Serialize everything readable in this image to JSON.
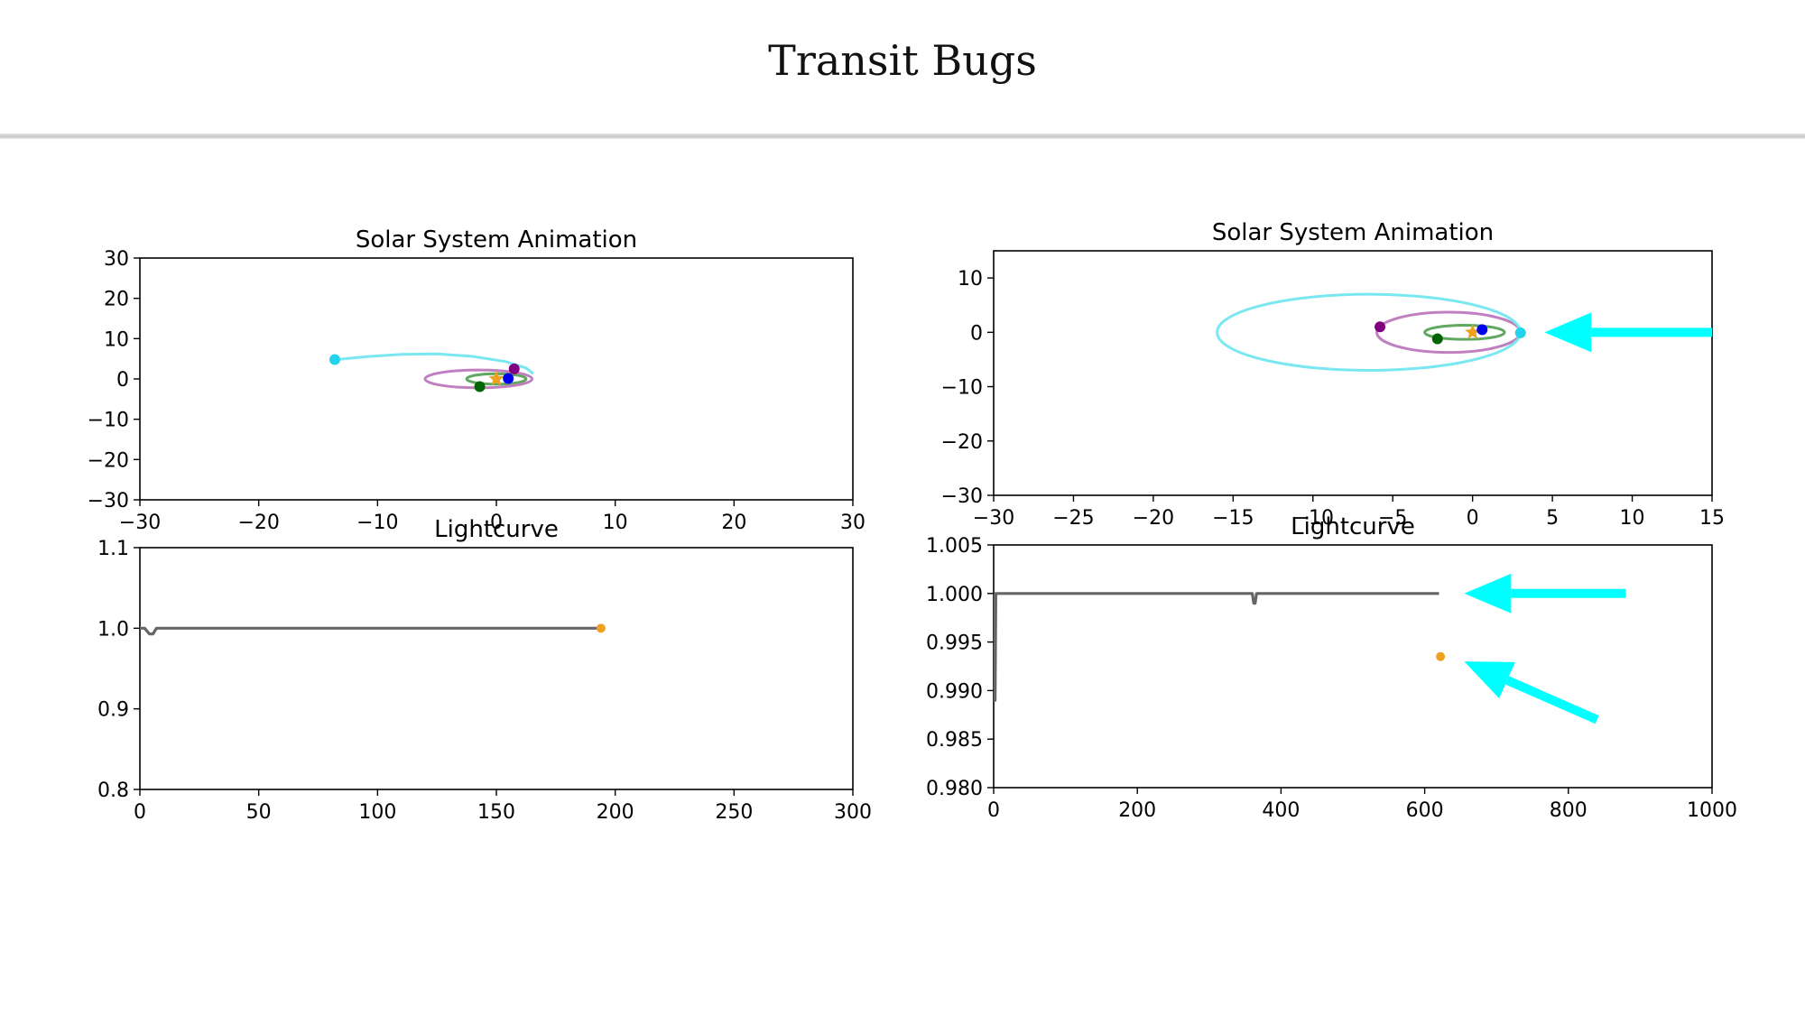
{
  "slide": {
    "title": "Transit Bugs"
  },
  "colors": {
    "star": "#f0a020",
    "planet_blue": "#0000ee",
    "planet_green": "#006400",
    "planet_purple": "#800080",
    "planet_cyan": "#22d3ee",
    "orbit_green": "#60a860",
    "orbit_purple": "#c080c0",
    "orbit_cyan": "#7ae8f0",
    "lightcurve": "#666666",
    "arrow": "#00ffff",
    "marker": "#f0a020"
  },
  "chart_data": [
    {
      "type": "scatter",
      "title": "Solar System Animation",
      "xlabel": "",
      "ylabel": "",
      "xlim": [
        -30,
        30
      ],
      "ylim": [
        -30,
        30
      ],
      "xticks": [
        -30,
        -20,
        -10,
        0,
        10,
        20,
        30
      ],
      "yticks": [
        -30,
        -20,
        -10,
        0,
        10,
        20,
        30
      ],
      "grid": false,
      "orbits": [
        {
          "color": "orbit_green",
          "cx": 0,
          "cy": 0,
          "rx": 2.5,
          "ry": 1.3
        },
        {
          "color": "orbit_purple",
          "cx": -1.5,
          "cy": 0,
          "rx": 4.5,
          "ry": 2.2
        }
      ],
      "trails": [
        {
          "color": "orbit_cyan",
          "points": [
            [
              -13.5,
              4.8
            ],
            [
              -11,
              5.5
            ],
            [
              -8,
              6.1
            ],
            [
              -5,
              6.2
            ],
            [
              -2,
              5.6
            ],
            [
              0.8,
              4.3
            ],
            [
              2.5,
              2.7
            ],
            [
              3.1,
              1.3
            ]
          ]
        }
      ],
      "bodies": [
        {
          "label": "star",
          "x": 0,
          "y": 0,
          "color": "star",
          "shape": "star"
        },
        {
          "label": "blue",
          "x": 1.0,
          "y": 0.1,
          "color": "planet_blue"
        },
        {
          "label": "purple",
          "x": 1.5,
          "y": 2.5,
          "color": "planet_purple"
        },
        {
          "label": "green",
          "x": -1.4,
          "y": -1.9,
          "color": "planet_green"
        },
        {
          "label": "cyan",
          "x": -13.6,
          "y": 4.8,
          "color": "planet_cyan"
        }
      ]
    },
    {
      "type": "line",
      "title": "Lightcurve",
      "xlabel": "",
      "ylabel": "",
      "xlim": [
        0,
        300
      ],
      "ylim": [
        0.8,
        1.1
      ],
      "xticks": [
        0,
        50,
        100,
        150,
        200,
        250,
        300
      ],
      "yticks": [
        0.8,
        0.9,
        1.0,
        1.1
      ],
      "ytick_labels": [
        "0.8",
        "0.9",
        "1.0",
        "1.1"
      ],
      "grid": false,
      "series": [
        {
          "color": "lightcurve",
          "x": [
            0,
            2,
            4,
            5.5,
            7,
            194
          ],
          "y": [
            1.0,
            1.0,
            0.993,
            0.993,
            1.0,
            1.0
          ]
        }
      ],
      "marker": {
        "x": 194,
        "y": 1.0,
        "color": "marker"
      }
    },
    {
      "type": "scatter",
      "title": "Solar System Animation",
      "xlabel": "",
      "ylabel": "",
      "xlim": [
        -30,
        15
      ],
      "ylim": [
        -30,
        15
      ],
      "xticks": [
        -30,
        -25,
        -20,
        -15,
        -10,
        -5,
        0,
        5,
        10,
        15
      ],
      "yticks": [
        -30,
        -20,
        -10,
        0,
        10
      ],
      "grid": false,
      "orbits": [
        {
          "color": "orbit_green",
          "cx": -0.5,
          "cy": 0,
          "rx": 2.5,
          "ry": 1.3
        },
        {
          "color": "orbit_purple",
          "cx": -1.5,
          "cy": 0,
          "rx": 4.5,
          "ry": 3.7
        },
        {
          "color": "orbit_cyan",
          "cx": -6.5,
          "cy": 0,
          "rx": 9.5,
          "ry": 7.0
        }
      ],
      "trails": [],
      "bodies": [
        {
          "label": "star",
          "x": 0,
          "y": 0,
          "color": "star",
          "shape": "star"
        },
        {
          "label": "blue",
          "x": 0.6,
          "y": 0.5,
          "color": "planet_blue"
        },
        {
          "label": "purple",
          "x": -5.8,
          "y": 1.0,
          "color": "planet_purple"
        },
        {
          "label": "green",
          "x": -2.2,
          "y": -1.2,
          "color": "planet_green"
        },
        {
          "label": "cyan",
          "x": 3.0,
          "y": -0.1,
          "color": "planet_cyan"
        }
      ],
      "arrows": [
        {
          "from": [
            15,
            0
          ],
          "to": [
            4.5,
            0
          ]
        }
      ]
    },
    {
      "type": "line",
      "title": "Lightcurve",
      "xlabel": "",
      "ylabel": "",
      "xlim": [
        0,
        1000
      ],
      "ylim": [
        0.98,
        1.005
      ],
      "xticks": [
        0,
        200,
        400,
        600,
        800,
        1000
      ],
      "yticks": [
        0.98,
        0.985,
        0.99,
        0.995,
        1.0,
        1.005
      ],
      "ytick_labels": [
        "0.980",
        "0.985",
        "0.990",
        "0.995",
        "1.000",
        "1.005"
      ],
      "grid": false,
      "series": [
        {
          "color": "lightcurve",
          "x": [
            0,
            1,
            2,
            3,
            4,
            60,
            122,
            185,
            248,
            310,
            360,
            362,
            364,
            366,
            400,
            430,
            495,
            555,
            620
          ],
          "y": [
            1.0,
            0.989,
            0.989,
            1.0,
            1.0,
            1.0,
            1.0,
            1.0,
            1.0,
            1.0,
            1.0,
            0.999,
            0.999,
            1.0,
            1.0,
            1.0,
            1.0,
            1.0,
            1.0
          ]
        }
      ],
      "marker": {
        "x": 622,
        "y": 0.9935,
        "color": "marker"
      },
      "arrows": [
        {
          "from": [
            880,
            1.0
          ],
          "to": [
            655,
            1.0
          ]
        },
        {
          "from": [
            840,
            0.987
          ],
          "to": [
            655,
            0.993
          ]
        }
      ]
    }
  ]
}
